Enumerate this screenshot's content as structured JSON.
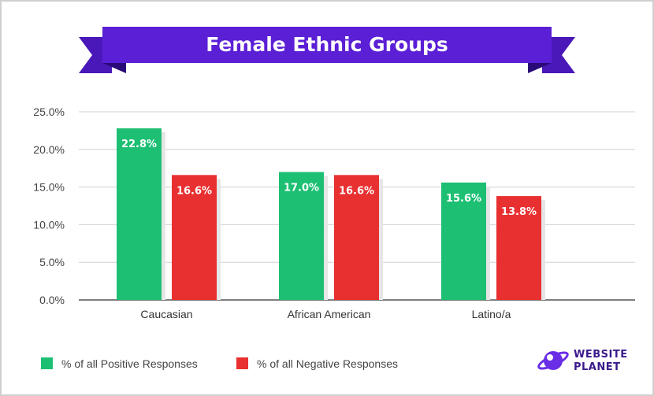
{
  "chart_data": {
    "type": "bar",
    "title": "Female Ethnic Groups",
    "categories": [
      "Caucasian",
      "African American",
      "Latino/a"
    ],
    "series": [
      {
        "name": "% of all Positive Responses",
        "values": [
          22.8,
          17.0,
          15.6
        ],
        "labels": [
          "22.8%",
          "17.0%",
          "15.6%"
        ],
        "color": "#1dbf73"
      },
      {
        "name": "% of all Negative Responses",
        "values": [
          16.6,
          16.6,
          13.8
        ],
        "labels": [
          "16.6%",
          "16.6%",
          "13.8%"
        ],
        "color": "#e83030"
      }
    ],
    "ylim": [
      0,
      25
    ],
    "yticks": [
      0,
      5,
      10,
      15,
      20,
      25
    ],
    "ytick_labels": [
      "0.0%",
      "5.0%",
      "10.0%",
      "15.0%",
      "20.0%",
      "25.0%"
    ],
    "xlabel": "",
    "ylabel": "",
    "grid": true,
    "legend": "bottom-left"
  },
  "banner": {
    "color": "#5b1fd6",
    "ribbon_dark": "#3d12a3"
  },
  "brand": {
    "line1": "WEBSITE",
    "line2": "PLANET",
    "icon": "planet-logo-icon",
    "color": "#6a2ee6"
  }
}
